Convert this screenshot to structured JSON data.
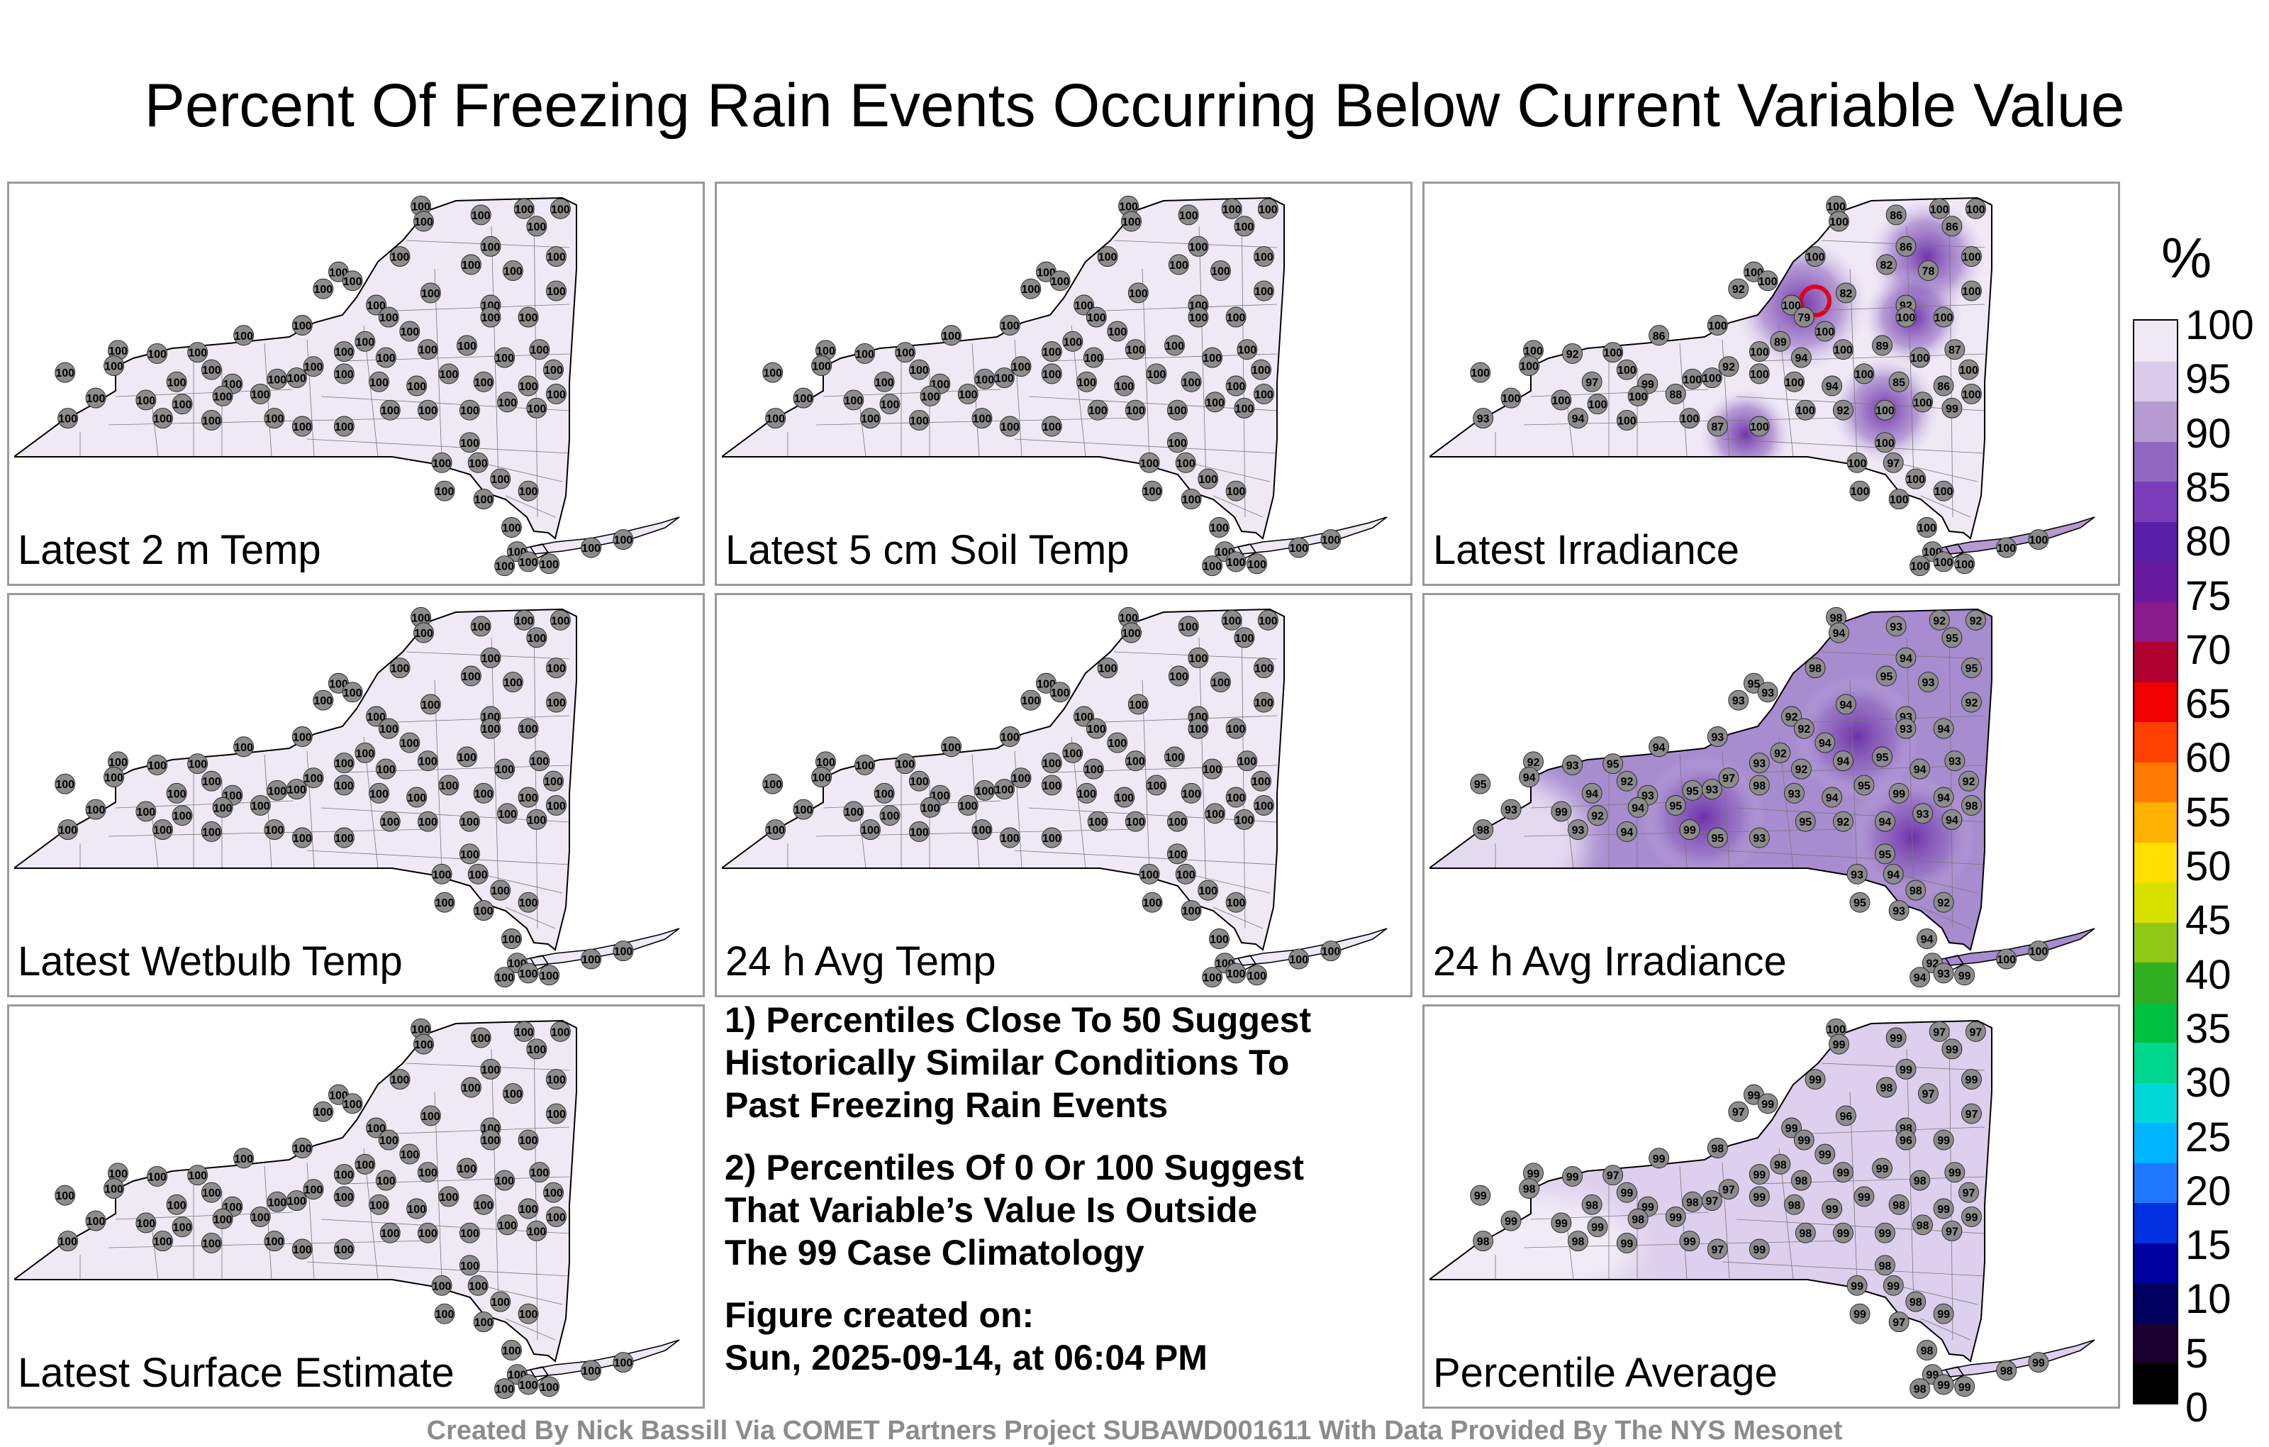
{
  "title": "Percent Of Freezing Rain Events Occurring Below Current Variable Value",
  "panels": [
    {
      "label": "Latest 2 m Temp",
      "mode": "all100",
      "hot": [],
      "override": {}
    },
    {
      "label": "Latest 5 cm Soil Temp",
      "mode": "all100",
      "hot": [],
      "override": {}
    },
    {
      "label": "Latest Irradiance",
      "mode": "irradiance",
      "hot": [
        [
          0.54,
          0.3,
          0.9
        ],
        [
          0.72,
          0.18,
          0.7
        ],
        [
          0.66,
          0.56,
          0.6
        ],
        [
          0.7,
          0.33,
          0.5
        ],
        [
          0.46,
          0.62,
          0.4
        ]
      ],
      "override": {
        "2": "86",
        "4": "86",
        "6": "86",
        "9": "92",
        "12": "79",
        "13": "82",
        "14": "82",
        "15": "78",
        "17": "92",
        "22": "89",
        "24": "86",
        "26": "92",
        "31": "93",
        "33": "97",
        "35": "99",
        "37": "92",
        "39": "94",
        "41": "89",
        "43": "87",
        "45": "86",
        "46": "85",
        "48": "94",
        "52": "88",
        "55": "94",
        "58": "87",
        "61": "92",
        "64": "99",
        "68": "97"
      }
    },
    {
      "label": "Latest Wetbulb Temp",
      "mode": "all100",
      "hot": [],
      "override": {}
    },
    {
      "label": "24 h Avg Temp",
      "mode": "all100",
      "hot": [],
      "override": {}
    },
    {
      "label": "24 h Avg Irradiance",
      "mode": "avgirr",
      "hot": [
        [
          0.4,
          0.55,
          0.8
        ],
        [
          0.62,
          0.35,
          0.8
        ],
        [
          0.7,
          0.6,
          0.8
        ]
      ],
      "override": {
        "0": "98",
        "1": "94",
        "2": "93",
        "3": "92",
        "4": "95",
        "5": "92",
        "6": "94",
        "7": "98",
        "8": "95",
        "9": "93",
        "10": "93",
        "11": "92",
        "12": "92",
        "13": "94",
        "14": "95",
        "15": "93",
        "16": "95",
        "17": "93",
        "18": "93",
        "19": "94",
        "20": "92",
        "21": "94",
        "22": "92",
        "23": "93",
        "24": "94",
        "25": "95",
        "26": "93",
        "27": "92",
        "28": "94",
        "29": "95",
        "30": "93",
        "31": "98",
        "32": "99",
        "33": "94",
        "34": "92",
        "35": "93",
        "36": "95",
        "37": "97",
        "38": "93",
        "39": "92",
        "40": "94",
        "41": "95",
        "42": "94",
        "43": "93",
        "44": "92",
        "45": "94",
        "46": "99",
        "47": "95",
        "48": "94",
        "49": "93",
        "50": "98",
        "51": "93",
        "52": "95",
        "53": "94",
        "54": "92",
        "55": "93",
        "56": "94",
        "57": "99",
        "58": "95",
        "59": "93",
        "60": "95",
        "61": "92",
        "62": "94",
        "63": "93",
        "64": "94",
        "65": "98",
        "66": "95",
        "67": "93",
        "68": "94",
        "69": "98",
        "70": "92",
        "71": "93",
        "72": "95",
        "73": "94",
        "74": "92",
        "75": "93",
        "76": "94",
        "77": "99"
      }
    },
    {
      "label": "Latest Surface Estimate",
      "mode": "all100",
      "hot": [],
      "override": {}
    },
    {
      "label": "Percentile Average",
      "mode": "average",
      "hot": [],
      "override": {
        "0": "100",
        "1": "99",
        "2": "99",
        "3": "97",
        "4": "99",
        "5": "97",
        "6": "99",
        "7": "99",
        "8": "99",
        "9": "97",
        "10": "99",
        "11": "99",
        "12": "99",
        "13": "96",
        "14": "98",
        "15": "97",
        "16": "99",
        "17": "98",
        "18": "96",
        "19": "99",
        "20": "97",
        "21": "99",
        "22": "98",
        "23": "98",
        "24": "99",
        "25": "97",
        "26": "99",
        "27": "99",
        "28": "98",
        "29": "99",
        "30": "99",
        "31": "98",
        "32": "99",
        "33": "98",
        "34": "99",
        "35": "99",
        "36": "98",
        "37": "97",
        "38": "99",
        "39": "98",
        "40": "99",
        "41": "99",
        "42": "98",
        "43": "99",
        "44": "97",
        "45": "99",
        "46": "98",
        "47": "99",
        "48": "99",
        "49": "98",
        "50": "99",
        "51": "97",
        "52": "99",
        "53": "98",
        "54": "99",
        "55": "98",
        "56": "99",
        "57": "99",
        "58": "97",
        "59": "99",
        "60": "98",
        "61": "99",
        "62": "99",
        "63": "98",
        "64": "97",
        "65": "99",
        "66": "98",
        "67": "99",
        "68": "99",
        "69": "98",
        "70": "99",
        "71": "97",
        "72": "99",
        "73": "98",
        "74": "99",
        "75": "99",
        "76": "98",
        "77": "99",
        "78": "98",
        "79": "99"
      }
    }
  ],
  "notes": [
    "1) Percentiles Close To 50 Suggest\nHistorically Similar Conditions To\nPast Freezing Rain Events",
    "2) Percentiles Of 0 Or 100 Suggest\nThat Variable’s Value Is Outside\nThe 99 Case Climatology",
    "Figure created on:\nSun, 2025-09-14, at 06:04 PM"
  ],
  "colorbar": {
    "unit": "%",
    "ticks": [
      "100",
      "95",
      "90",
      "85",
      "80",
      "75",
      "70",
      "65",
      "60",
      "55",
      "50",
      "45",
      "40",
      "35",
      "30",
      "25",
      "20",
      "15",
      "10",
      "5",
      "0"
    ],
    "colors": [
      "#000000",
      "#1a0030",
      "#000060",
      "#0000a0",
      "#0030e0",
      "#1e78ff",
      "#00b4ff",
      "#00d8d8",
      "#00d890",
      "#00c040",
      "#30b020",
      "#90c818",
      "#d8e000",
      "#ffe000",
      "#ffb000",
      "#ff7800",
      "#ff4000",
      "#f00000",
      "#b00030",
      "#8a1a8a",
      "#6a1aa0",
      "#5a20a8",
      "#7a3cb8",
      "#9068c0",
      "#b49ad0",
      "#d8ccea",
      "#efe8f5"
    ]
  },
  "footer": "Created By Nick Bassill Via COMET Partners Project SUBAWD001611 With Data Provided By The NYS Mesonet"
}
